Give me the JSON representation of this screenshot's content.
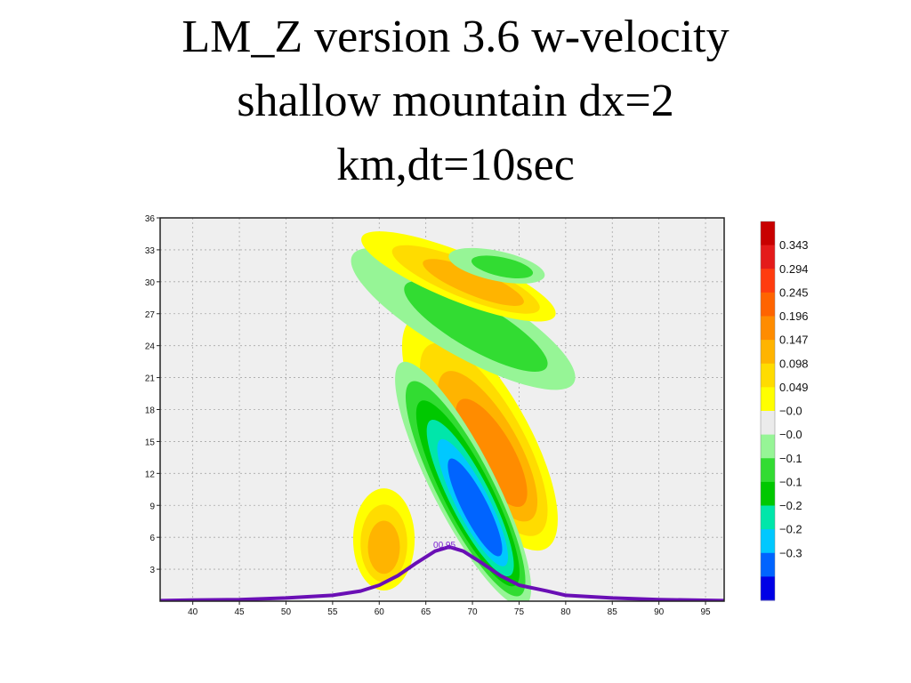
{
  "slide": {
    "title_line1": "LM_Z version 3.6 w-velocity",
    "title_line2": "shallow mountain dx=2",
    "title_line3": "km,dt=10sec"
  },
  "chart_data": {
    "type": "heatmap",
    "title": "LM_Z version 3.6 w-velocity shallow mountain dx=2 km,dt=10sec",
    "xlabel": "",
    "ylabel": "",
    "xlim": [
      36.5,
      97
    ],
    "ylim": [
      0,
      36
    ],
    "x_ticks": [
      40,
      45,
      50,
      55,
      60,
      65,
      70,
      75,
      80,
      85,
      90,
      95
    ],
    "x_tick_labels": [
      "40",
      "45",
      "50",
      "55",
      "60",
      "65",
      "70",
      "75",
      "80",
      "85",
      "90",
      "95"
    ],
    "y_ticks": [
      3,
      6,
      9,
      12,
      15,
      18,
      21,
      24,
      27,
      30,
      33,
      36
    ],
    "y_tick_labels": [
      "3",
      "6",
      "9",
      "12",
      "15",
      "18",
      "21",
      "24",
      "27",
      "30",
      "33",
      "36"
    ],
    "grid": true,
    "background_color": "#efefef",
    "colorbar": {
      "labels": [
        "0.343",
        "0.294",
        "0.245",
        "0.196",
        "0.147",
        "0.098",
        "0.049",
        "−0.0",
        "−0.0",
        "−0.1",
        "−0.1",
        "−0.2",
        "−0.2",
        "−0.3"
      ],
      "colors": [
        "#c80000",
        "#e41a1a",
        "#ff3c0f",
        "#ff6400",
        "#ff8c00",
        "#ffb400",
        "#ffdc00",
        "#ffff00",
        "#ebebeb",
        "#96f596",
        "#32dc32",
        "#00c800",
        "#00e6aa",
        "#00c8ff",
        "#0064ff",
        "#0000e6"
      ]
    },
    "blobs": [
      {
        "cx": 60.5,
        "cy": 5.8,
        "rx": 3.3,
        "ry": 4.8,
        "angle": 0,
        "levels": [
          0.049,
          0.098,
          0.147
        ]
      },
      {
        "cx": 70.8,
        "cy": 15.8,
        "rx": 5.0,
        "ry": 12.5,
        "angle": -30,
        "levels": [
          0.049,
          0.098,
          0.147,
          0.196
        ]
      },
      {
        "cx": 69.0,
        "cy": 11.0,
        "rx": 3.4,
        "ry": 12.8,
        "angle": -27,
        "levels": [
          -0.049,
          -0.098,
          -0.147,
          -0.196,
          -0.245,
          -0.294
        ]
      },
      {
        "cx": 69.0,
        "cy": 26.5,
        "rx": 3.8,
        "ry": 12.0,
        "angle": -60,
        "levels": [
          -0.049,
          -0.098
        ]
      },
      {
        "cx": 68.5,
        "cy": 30.5,
        "rx": 2.6,
        "ry": 9.8,
        "angle": -68,
        "levels": [
          0.049,
          0.098,
          0.147
        ]
      },
      {
        "cx": 72.6,
        "cy": 31.5,
        "rx": 1.6,
        "ry": 4.6,
        "angle": -78,
        "levels": [
          -0.049,
          -0.098
        ]
      }
    ],
    "terrain_label": "00.95",
    "terrain": {
      "x": [
        36.5,
        40,
        45,
        50,
        55,
        58,
        60,
        62,
        64,
        66,
        67.5,
        69,
        71,
        73,
        75,
        78,
        80,
        85,
        90,
        97
      ],
      "y": [
        0.05,
        0.1,
        0.15,
        0.3,
        0.55,
        0.95,
        1.5,
        2.4,
        3.6,
        4.7,
        5.1,
        4.7,
        3.6,
        2.4,
        1.5,
        0.95,
        0.55,
        0.3,
        0.15,
        0.05
      ]
    }
  }
}
